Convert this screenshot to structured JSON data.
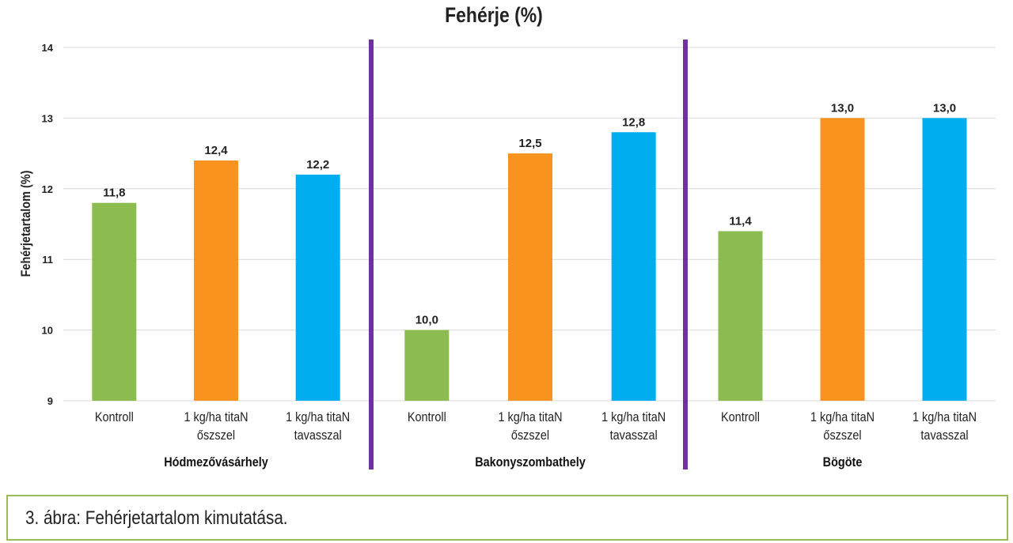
{
  "chart_data": {
    "type": "bar",
    "title": "Fehérje (%)",
    "ylabel": "Fehérjetartalom (%)",
    "xlabel": "",
    "ylim": [
      9,
      14
    ],
    "yticks": [
      9,
      10,
      11,
      12,
      13,
      14
    ],
    "grid": true,
    "legend": "none",
    "colors": {
      "Kontroll": "#8cbb50",
      "osszel": "#f7931e",
      "tavasszal": "#00aeef",
      "separator": "#7030a0"
    },
    "groups": [
      {
        "name": "Hódmezővásárhely",
        "bars": [
          {
            "label": [
              "Kontroll"
            ],
            "value": 11.8,
            "value_label": "11,8",
            "color": "#8cbb50"
          },
          {
            "label": [
              "1 kg/ha titaN",
              "őszszel"
            ],
            "value": 12.4,
            "value_label": "12,4",
            "color": "#f7931e"
          },
          {
            "label": [
              "1 kg/ha titaN",
              "tavasszal"
            ],
            "value": 12.2,
            "value_label": "12,2",
            "color": "#00aeef"
          }
        ]
      },
      {
        "name": "Bakonyszombathely",
        "bars": [
          {
            "label": [
              "Kontroll"
            ],
            "value": 10.0,
            "value_label": "10,0",
            "color": "#8cbb50"
          },
          {
            "label": [
              "1 kg/ha titaN",
              "őszszel"
            ],
            "value": 12.5,
            "value_label": "12,5",
            "color": "#f7931e"
          },
          {
            "label": [
              "1 kg/ha titaN",
              "tavasszal"
            ],
            "value": 12.8,
            "value_label": "12,8",
            "color": "#00aeef"
          }
        ]
      },
      {
        "name": "Bögöte",
        "bars": [
          {
            "label": [
              "Kontroll"
            ],
            "value": 11.4,
            "value_label": "11,4",
            "color": "#8cbb50"
          },
          {
            "label": [
              "1 kg/ha titaN",
              "őszszel"
            ],
            "value": 13.0,
            "value_label": "13,0",
            "color": "#f7931e"
          },
          {
            "label": [
              "1 kg/ha titaN",
              "tavasszal"
            ],
            "value": 13.0,
            "value_label": "13,0",
            "color": "#00aeef"
          }
        ]
      }
    ]
  },
  "caption": "3. ábra: Fehérjetartalom kimutatása."
}
